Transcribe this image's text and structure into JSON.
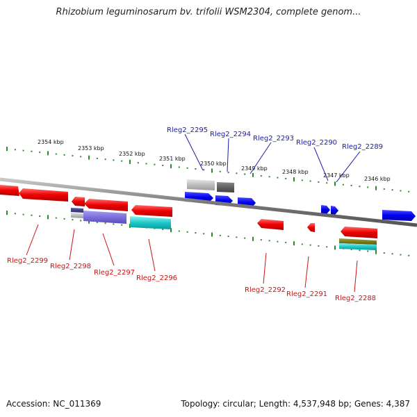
{
  "title": "Rhizobium leguminosarum bv. trifolii WSM2304, complete genom...",
  "footer": {
    "accession": "Accession: NC_011369",
    "topology": "Topology: circular; Length: 4,537,948 bp; Genes: 4,387"
  },
  "colors": {
    "forward_label": "#1a1aa8",
    "reverse_label": "#cc1111",
    "axis": "#888888",
    "tick": "#2a8a2a"
  },
  "kbp_ticks": [
    {
      "label": "2354 kbp"
    },
    {
      "label": "2353 kbp"
    },
    {
      "label": "2352 kbp"
    },
    {
      "label": "2351 kbp"
    },
    {
      "label": "2350 kbp"
    },
    {
      "label": "2349 kbp"
    },
    {
      "label": "2348 kbp"
    },
    {
      "label": "2347 kbp"
    },
    {
      "label": "2346 kbp"
    }
  ],
  "forward_genes": [
    {
      "name": "Rleg2_2295"
    },
    {
      "name": "Rleg2_2294"
    },
    {
      "name": "Rleg2_2293"
    },
    {
      "name": "Rleg2_2290"
    },
    {
      "name": "Rleg2_2289"
    }
  ],
  "reverse_genes": [
    {
      "name": "Rleg2_2299"
    },
    {
      "name": "Rleg2_2298"
    },
    {
      "name": "Rleg2_2297"
    },
    {
      "name": "Rleg2_2296"
    },
    {
      "name": "Rleg2_2292"
    },
    {
      "name": "Rleg2_2291"
    },
    {
      "name": "Rleg2_2288"
    }
  ]
}
